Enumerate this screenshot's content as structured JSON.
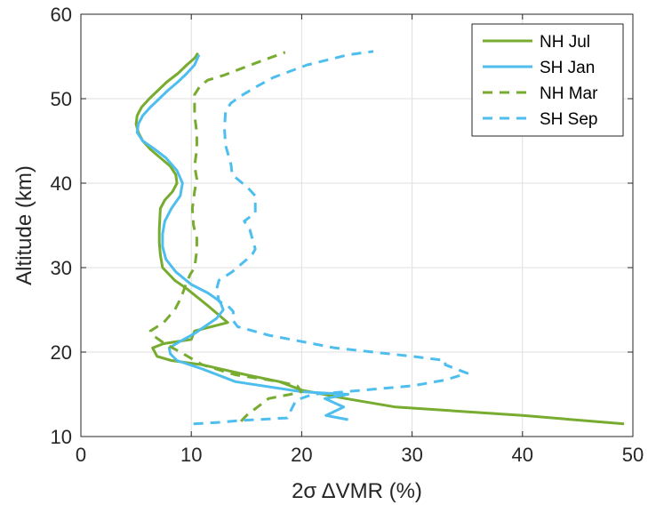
{
  "chart_data": {
    "type": "line",
    "xlabel": "2σ ΔVMR (%)",
    "ylabel": "Altitude (km)",
    "xlim": [
      0,
      50
    ],
    "ylim": [
      10,
      60
    ],
    "xticks": [
      0,
      10,
      20,
      30,
      40,
      50
    ],
    "yticks": [
      10,
      20,
      30,
      40,
      50,
      60
    ],
    "grid": true,
    "legend_position": "top-right",
    "series": [
      {
        "name": "NH Jul",
        "color": "#77ac30",
        "dash": "solid",
        "points": [
          [
            49.2,
            11.5
          ],
          [
            40,
            12.5
          ],
          [
            28.5,
            13.5
          ],
          [
            24,
            14.5
          ],
          [
            20,
            15.5
          ],
          [
            18,
            16.5
          ],
          [
            15,
            17.3
          ],
          [
            11,
            18.5
          ],
          [
            8.2,
            19
          ],
          [
            6.9,
            19.5
          ],
          [
            6.5,
            20.5
          ],
          [
            7.5,
            21
          ],
          [
            10,
            21.5
          ],
          [
            10.3,
            22.5
          ],
          [
            13.3,
            23.5
          ],
          [
            11.5,
            25.5
          ],
          [
            9.6,
            27.5
          ],
          [
            8.5,
            28.5
          ],
          [
            7.4,
            30
          ],
          [
            7.2,
            31.5
          ],
          [
            7.1,
            33
          ],
          [
            7.1,
            34.5
          ],
          [
            7.2,
            37
          ],
          [
            7.6,
            38
          ],
          [
            8.3,
            39
          ],
          [
            8.7,
            40
          ],
          [
            8.6,
            41
          ],
          [
            8.1,
            42
          ],
          [
            7.2,
            43
          ],
          [
            6.3,
            44
          ],
          [
            5.6,
            45
          ],
          [
            5.2,
            46
          ],
          [
            5.0,
            47
          ],
          [
            5.1,
            48
          ],
          [
            5.5,
            49
          ],
          [
            6.2,
            50
          ],
          [
            7.0,
            51
          ],
          [
            7.8,
            52
          ],
          [
            8.8,
            53
          ],
          [
            9.6,
            54
          ],
          [
            10.3,
            54.8
          ],
          [
            10.6,
            55.4
          ]
        ]
      },
      {
        "name": "SH Jan",
        "color": "#4dbeee",
        "dash": "solid",
        "points": [
          [
            24.2,
            12
          ],
          [
            22.2,
            12.5
          ],
          [
            23.8,
            13.5
          ],
          [
            22.1,
            14.5
          ],
          [
            24.2,
            15
          ],
          [
            20,
            15.3
          ],
          [
            14,
            16.5
          ],
          [
            11,
            18
          ],
          [
            8.7,
            19
          ],
          [
            8.1,
            19.8
          ],
          [
            8.0,
            20.5
          ],
          [
            8.9,
            21.2
          ],
          [
            10.3,
            22.2
          ],
          [
            12.3,
            24
          ],
          [
            12.9,
            25
          ],
          [
            12.6,
            26
          ],
          [
            11.5,
            27
          ],
          [
            10,
            28
          ],
          [
            8.6,
            29.5
          ],
          [
            7.7,
            31
          ],
          [
            7.4,
            32.5
          ],
          [
            7.4,
            34
          ],
          [
            7.6,
            35.5
          ],
          [
            8.2,
            37
          ],
          [
            9,
            38.5
          ],
          [
            9.2,
            40
          ],
          [
            8.7,
            41.5
          ],
          [
            7.7,
            43
          ],
          [
            6.5,
            44.2
          ],
          [
            5.6,
            45
          ],
          [
            5.1,
            46
          ],
          [
            5.2,
            47
          ],
          [
            5.6,
            48
          ],
          [
            6.3,
            49
          ],
          [
            7.1,
            50
          ],
          [
            7.9,
            51
          ],
          [
            8.8,
            52
          ],
          [
            9.6,
            53
          ],
          [
            10.3,
            54
          ],
          [
            10.7,
            55.2
          ]
        ]
      },
      {
        "name": "NH Mar",
        "color": "#77ac30",
        "dash": "dashed",
        "points": [
          [
            14.5,
            11.8
          ],
          [
            15,
            12.5
          ],
          [
            16,
            13.5
          ],
          [
            17,
            14.5
          ],
          [
            19,
            15
          ],
          [
            20,
            15.3
          ],
          [
            19.6,
            16
          ],
          [
            18,
            16.5
          ],
          [
            14,
            17.3
          ],
          [
            11,
            18.5
          ],
          [
            9,
            20
          ],
          [
            7.6,
            21
          ],
          [
            6.5,
            22
          ],
          [
            6.3,
            22.5
          ],
          [
            7.5,
            23.5
          ],
          [
            8.5,
            25
          ],
          [
            9.1,
            26.5
          ],
          [
            9.5,
            28
          ],
          [
            9.9,
            29.2
          ],
          [
            10.3,
            30
          ],
          [
            10.5,
            32
          ],
          [
            10.5,
            33.5
          ],
          [
            10.2,
            35
          ],
          [
            10.1,
            37
          ],
          [
            10.3,
            39
          ],
          [
            10.5,
            40.5
          ],
          [
            10.3,
            42
          ],
          [
            10.5,
            44
          ],
          [
            10.5,
            46
          ],
          [
            10.3,
            48
          ],
          [
            10.3,
            50.5
          ],
          [
            10.8,
            51.5
          ],
          [
            11.5,
            52.2
          ],
          [
            13,
            52.8
          ],
          [
            14,
            53.3
          ],
          [
            16,
            54.3
          ],
          [
            18.5,
            55.5
          ]
        ]
      },
      {
        "name": "SH Sep",
        "color": "#4dbeee",
        "dash": "dashed",
        "points": [
          [
            10.2,
            11.5
          ],
          [
            12.7,
            11.7
          ],
          [
            14.5,
            11.9
          ],
          [
            18.7,
            12.2
          ],
          [
            19.1,
            13.3
          ],
          [
            19.5,
            14.3
          ],
          [
            21,
            15
          ],
          [
            24,
            15.3
          ],
          [
            26.5,
            15.6
          ],
          [
            30,
            16
          ],
          [
            33,
            16.7
          ],
          [
            35,
            17.5
          ],
          [
            33,
            18.5
          ],
          [
            33,
            19
          ],
          [
            30,
            19.5
          ],
          [
            23,
            20.5
          ],
          [
            17,
            22
          ],
          [
            14.2,
            23
          ],
          [
            13.8,
            23.7
          ],
          [
            13.8,
            24.8
          ],
          [
            13.3,
            25.5
          ],
          [
            12.5,
            26
          ],
          [
            12.3,
            27.5
          ],
          [
            12.5,
            28.5
          ],
          [
            13.7,
            29.5
          ],
          [
            15.5,
            31.5
          ],
          [
            15.8,
            32.2
          ],
          [
            15.3,
            34.5
          ],
          [
            14.8,
            35.5
          ],
          [
            15.8,
            36.5
          ],
          [
            15.8,
            38.5
          ],
          [
            15.1,
            39.5
          ],
          [
            13.7,
            41
          ],
          [
            13.6,
            42.2
          ],
          [
            13.1,
            44.5
          ],
          [
            13.0,
            46.5
          ],
          [
            13.1,
            48.5
          ],
          [
            13.6,
            49.5
          ],
          [
            14.7,
            50.5
          ],
          [
            16.0,
            51.5
          ],
          [
            17.4,
            52.5
          ],
          [
            20.5,
            54
          ],
          [
            23,
            54.8
          ],
          [
            24.2,
            55.2
          ],
          [
            26.5,
            55.6
          ]
        ]
      }
    ]
  }
}
